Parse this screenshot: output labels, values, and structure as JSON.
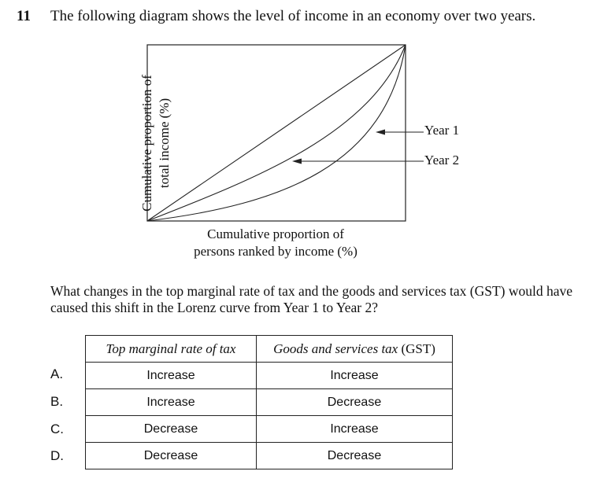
{
  "question": {
    "number": "11",
    "stem": "The following diagram shows the level of income in an economy over two years.",
    "prompt": "What changes in the top marginal rate of tax and the goods and services tax (GST) would have caused this shift in the Lorenz curve from Year 1 to Year 2?"
  },
  "diagram": {
    "y_axis_label_line1": "Cumulative proportion of",
    "y_axis_label_line2": "total income (%)",
    "x_axis_label_line1": "Cumulative proportion of",
    "x_axis_label_line2": "persons ranked by income (%)",
    "legend": [
      "Year 1",
      "Year 2"
    ]
  },
  "table": {
    "header_col1": "Top marginal rate of tax",
    "header_col2_main": "Goods and services tax",
    "header_col2_abbr": "(GST)",
    "rows": [
      {
        "letter": "A.",
        "tax": "Increase",
        "gst": "Increase"
      },
      {
        "letter": "B.",
        "tax": "Increase",
        "gst": "Decrease"
      },
      {
        "letter": "C.",
        "tax": "Decrease",
        "gst": "Increase"
      },
      {
        "letter": "D.",
        "tax": "Decrease",
        "gst": "Decrease"
      }
    ]
  }
}
